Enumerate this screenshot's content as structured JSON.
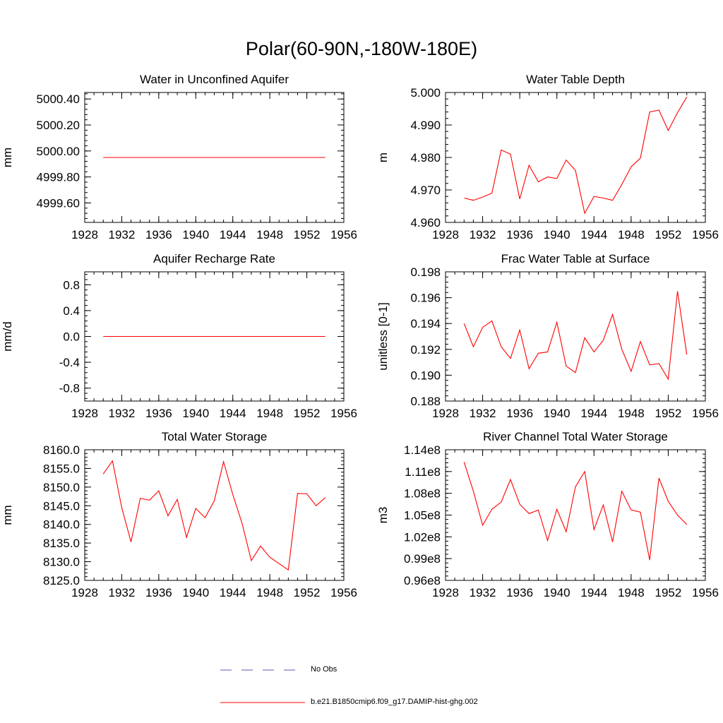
{
  "title": "Polar(60-90N,-180W-180E)",
  "legend": {
    "obs_label": "No Obs",
    "model_label": "b.e21.B1850cmip6.f09_g17.DAMIP-hist-ghg.002",
    "obs_color": "#5a5ab4",
    "model_color": "#ff0000"
  },
  "chart_data": [
    {
      "type": "line",
      "title": "Water in Unconfined Aquifer",
      "ylabel": "mm",
      "xlim": [
        1928,
        1956
      ],
      "ylim": [
        4999.45,
        5000.45
      ],
      "xticks": [
        1928,
        1932,
        1936,
        1940,
        1944,
        1948,
        1952,
        1956
      ],
      "xtick_labels": [
        "1928",
        "1932",
        "1936",
        "1940",
        "1944",
        "1948",
        "1952",
        "1956"
      ],
      "yticks": [
        4999.6,
        4999.8,
        5000.0,
        5000.2,
        5000.4
      ],
      "ytick_labels": [
        "4999.60",
        "4999.80",
        "5000.00",
        "5000.20",
        "5000.40"
      ],
      "x": [
        1930,
        1954
      ],
      "y": [
        4999.95,
        4999.95
      ]
    },
    {
      "type": "line",
      "title": "Water Table Depth",
      "ylabel": "m",
      "xlim": [
        1928,
        1956
      ],
      "ylim": [
        4.96,
        5.0
      ],
      "xticks": [
        1928,
        1932,
        1936,
        1940,
        1944,
        1948,
        1952,
        1956
      ],
      "xtick_labels": [
        "1928",
        "1932",
        "1936",
        "1940",
        "1944",
        "1948",
        "1952",
        "1956"
      ],
      "yticks": [
        4.96,
        4.97,
        4.98,
        4.99,
        5.0
      ],
      "ytick_labels": [
        "4.960",
        "4.970",
        "4.980",
        "4.990",
        "5.000"
      ],
      "x": [
        1930,
        1931,
        1932,
        1933,
        1934,
        1935,
        1936,
        1937,
        1938,
        1939,
        1940,
        1941,
        1942,
        1943,
        1944,
        1945,
        1946,
        1947,
        1948,
        1949,
        1950,
        1951,
        1952,
        1953,
        1954
      ],
      "y": [
        4.9675,
        4.9668,
        4.9678,
        4.969,
        4.9823,
        4.981,
        4.9672,
        4.9776,
        4.9725,
        4.974,
        4.9735,
        4.9792,
        4.976,
        4.9628,
        4.968,
        4.9675,
        4.9668,
        4.9717,
        4.9771,
        4.9798,
        4.994,
        4.9946,
        4.9883,
        4.9938,
        4.9986
      ]
    },
    {
      "type": "line",
      "title": "Aquifer Recharge Rate",
      "ylabel": "mm/d",
      "xlim": [
        1928,
        1956
      ],
      "ylim": [
        -1.0,
        1.0
      ],
      "xticks": [
        1928,
        1932,
        1936,
        1940,
        1944,
        1948,
        1952,
        1956
      ],
      "xtick_labels": [
        "1928",
        "1932",
        "1936",
        "1940",
        "1944",
        "1948",
        "1952",
        "1956"
      ],
      "yticks": [
        -0.8,
        -0.4,
        0.0,
        0.4,
        0.8
      ],
      "ytick_labels": [
        "-0.8",
        "-0.4",
        "0.0",
        "0.4",
        "0.8"
      ],
      "x": [
        1930,
        1954
      ],
      "y": [
        0.0,
        0.0
      ]
    },
    {
      "type": "line",
      "title": "Frac Water Table at Surface",
      "ylabel": "unitless [0-1]",
      "xlim": [
        1928,
        1956
      ],
      "ylim": [
        0.188,
        0.198
      ],
      "xticks": [
        1928,
        1932,
        1936,
        1940,
        1944,
        1948,
        1952,
        1956
      ],
      "xtick_labels": [
        "1928",
        "1932",
        "1936",
        "1940",
        "1944",
        "1948",
        "1952",
        "1956"
      ],
      "yticks": [
        0.188,
        0.19,
        0.192,
        0.194,
        0.196,
        0.198
      ],
      "ytick_labels": [
        "0.188",
        "0.190",
        "0.192",
        "0.194",
        "0.196",
        "0.198"
      ],
      "x": [
        1930,
        1931,
        1932,
        1933,
        1934,
        1935,
        1936,
        1937,
        1938,
        1939,
        1940,
        1941,
        1942,
        1943,
        1944,
        1945,
        1946,
        1947,
        1948,
        1949,
        1950,
        1951,
        1952,
        1953,
        1954
      ],
      "y": [
        0.194,
        0.1922,
        0.1937,
        0.1942,
        0.1922,
        0.1913,
        0.1935,
        0.1905,
        0.1917,
        0.1918,
        0.1941,
        0.1907,
        0.1902,
        0.1929,
        0.1918,
        0.1927,
        0.1947,
        0.192,
        0.1903,
        0.1926,
        0.1908,
        0.1909,
        0.1897,
        0.1965,
        0.1916
      ]
    },
    {
      "type": "line",
      "title": "Total Water Storage",
      "ylabel": "mm",
      "xlim": [
        1928,
        1956
      ],
      "ylim": [
        8125.0,
        8160.0
      ],
      "xticks": [
        1928,
        1932,
        1936,
        1940,
        1944,
        1948,
        1952,
        1956
      ],
      "xtick_labels": [
        "1928",
        "1932",
        "1936",
        "1940",
        "1944",
        "1948",
        "1952",
        "1956"
      ],
      "yticks": [
        8125,
        8130,
        8135,
        8140,
        8145,
        8150,
        8155,
        8160
      ],
      "ytick_labels": [
        "8125.0",
        "8130.0",
        "8135.0",
        "8140.0",
        "8145.0",
        "8150.0",
        "8155.0",
        "8160.0"
      ],
      "x": [
        1930,
        1931,
        1932,
        1933,
        1934,
        1935,
        1936,
        1937,
        1938,
        1939,
        1940,
        1941,
        1942,
        1943,
        1944,
        1945,
        1946,
        1947,
        1948,
        1949,
        1950,
        1951,
        1952,
        1953,
        1954
      ],
      "y": [
        8153.5,
        8157.0,
        8144.5,
        8135.3,
        8147.0,
        8146.5,
        8149.0,
        8142.3,
        8146.7,
        8136.5,
        8144.3,
        8141.8,
        8146.3,
        8156.8,
        8148.0,
        8140.3,
        8130.3,
        8134.2,
        8131.2,
        8129.5,
        8127.8,
        8148.3,
        8148.2,
        8145.0,
        8147.2
      ]
    },
    {
      "type": "line",
      "title": "River Channel Total Water Storage",
      "ylabel": "m3",
      "xlim": [
        1928,
        1956
      ],
      "ylim": [
        96000000.0,
        114000000.0
      ],
      "xticks": [
        1928,
        1932,
        1936,
        1940,
        1944,
        1948,
        1952,
        1956
      ],
      "xtick_labels": [
        "1928",
        "1932",
        "1936",
        "1940",
        "1944",
        "1948",
        "1952",
        "1956"
      ],
      "yticks": [
        96000000.0,
        99000000.0,
        102000000.0,
        105000000.0,
        108000000.0,
        111000000.0,
        114000000.0
      ],
      "ytick_labels": [
        "0.96e8",
        "0.99e8",
        "1.02e8",
        "1.05e8",
        "1.08e8",
        "1.11e8",
        "1.14e8"
      ],
      "x": [
        1930,
        1931,
        1932,
        1933,
        1934,
        1935,
        1936,
        1937,
        1938,
        1939,
        1940,
        1941,
        1942,
        1943,
        1944,
        1945,
        1946,
        1947,
        1948,
        1949,
        1950,
        1951,
        1952,
        1953,
        1954
      ],
      "y": [
        112300000.0,
        108300000.0,
        103600000.0,
        105800000.0,
        106800000.0,
        109900000.0,
        106500000.0,
        105200000.0,
        105700000.0,
        101500000.0,
        105800000.0,
        102700000.0,
        108900000.0,
        111000000.0,
        103000000.0,
        106400000.0,
        101300000.0,
        108300000.0,
        105700000.0,
        105400000.0,
        98800000.0,
        110100000.0,
        106900000.0,
        105000000.0,
        103700000.0
      ]
    }
  ]
}
